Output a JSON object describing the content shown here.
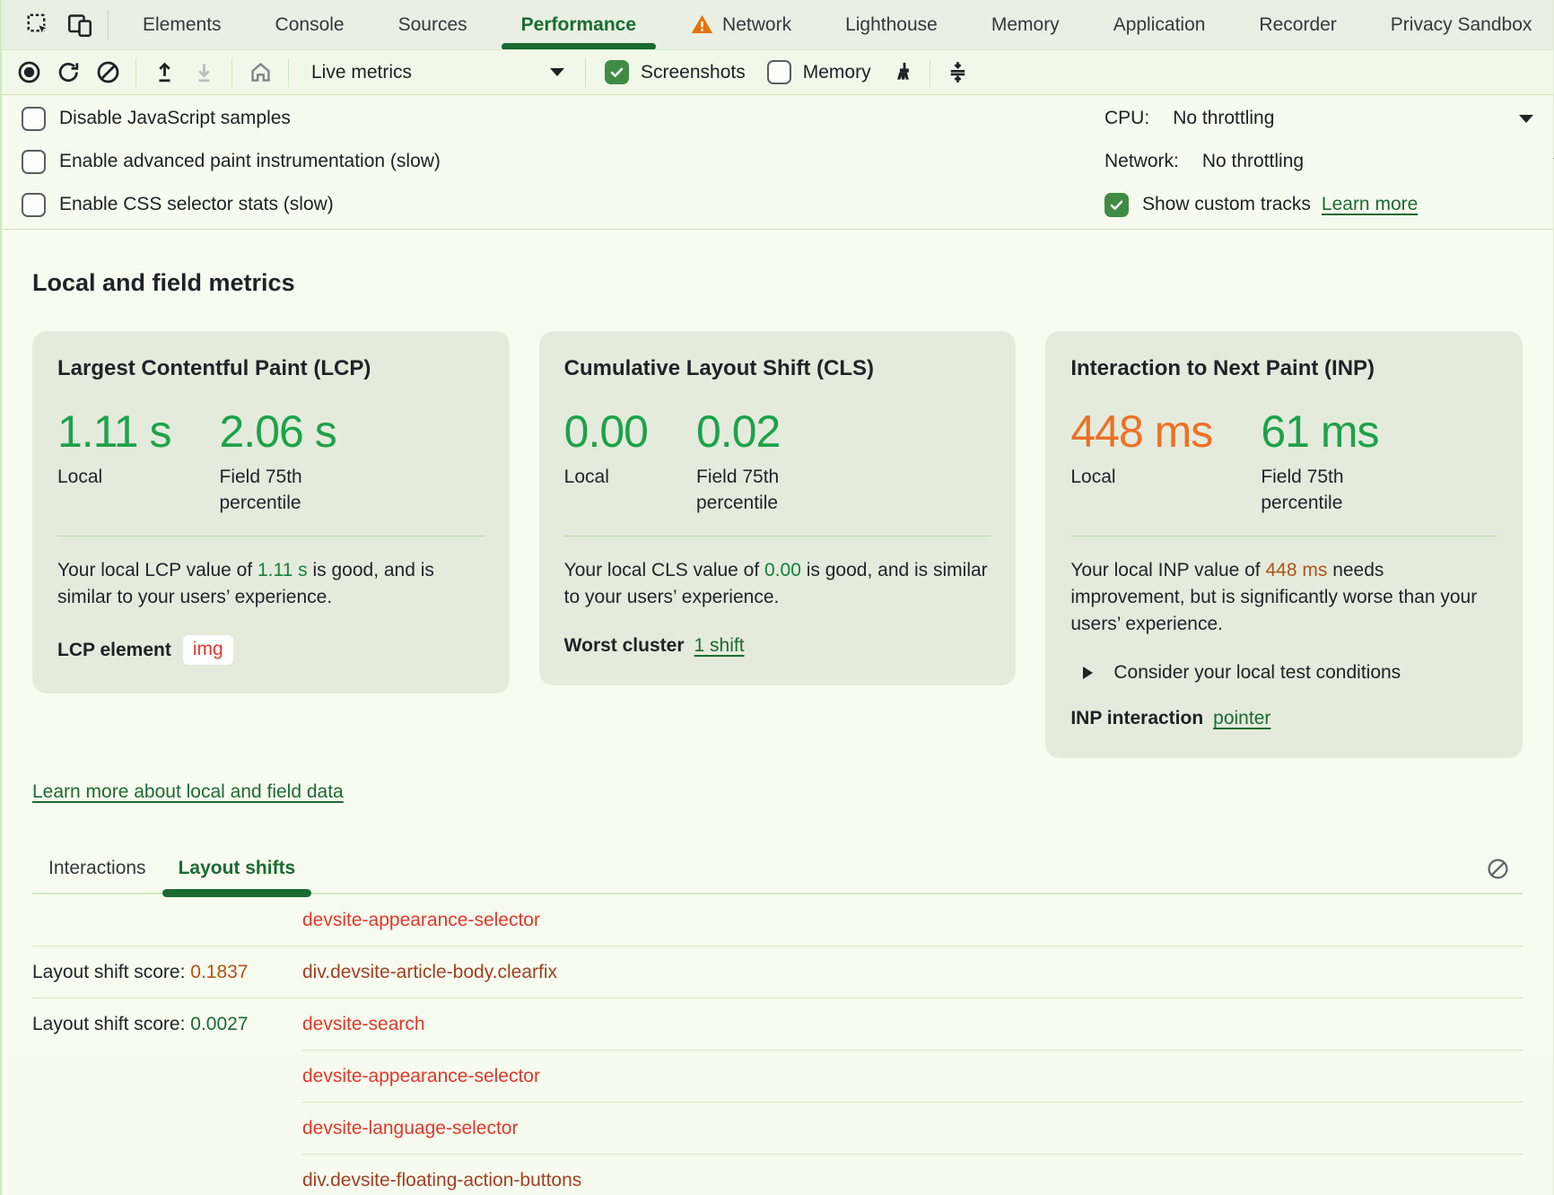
{
  "colors": {
    "accent_green": "#1a6b32",
    "metric_green": "#1ea24a",
    "metric_orange": "#ed7124",
    "inline_green": "#15803a",
    "inline_orange": "#b05314",
    "node_red": "#df392b",
    "node_brown": "#9e4123",
    "checkbox_green": "#3f8b43",
    "warning_orange": "#e8710a"
  },
  "tabbar": {
    "icons": [
      "inspect-icon",
      "device-toolbar-icon"
    ],
    "tabs": [
      {
        "label": "Elements",
        "active": false,
        "warning": false
      },
      {
        "label": "Console",
        "active": false,
        "warning": false
      },
      {
        "label": "Sources",
        "active": false,
        "warning": false
      },
      {
        "label": "Performance",
        "active": true,
        "warning": false
      },
      {
        "label": "Network",
        "active": false,
        "warning": true
      },
      {
        "label": "Lighthouse",
        "active": false,
        "warning": false
      },
      {
        "label": "Memory",
        "active": false,
        "warning": false
      },
      {
        "label": "Application",
        "active": false,
        "warning": false
      },
      {
        "label": "Recorder",
        "active": false,
        "warning": false
      },
      {
        "label": "Privacy Sandbox",
        "active": false,
        "warning": false
      }
    ]
  },
  "toolbar": {
    "icons": [
      "record-icon",
      "reload-icon",
      "clear-icon",
      "upload-icon",
      "download-icon",
      "home-icon",
      "broom-icon",
      "collapse-icon"
    ],
    "live_metrics_label": "Live metrics",
    "screenshots": {
      "label": "Screenshots",
      "checked": true
    },
    "memory": {
      "label": "Memory",
      "checked": false
    }
  },
  "settings": {
    "checkboxes": [
      {
        "label": "Disable JavaScript samples",
        "checked": false
      },
      {
        "label": "Enable advanced paint instrumentation (slow)",
        "checked": false
      },
      {
        "label": "Enable CSS selector stats (slow)",
        "checked": false
      }
    ],
    "cpu": {
      "label": "CPU:",
      "value": "No throttling"
    },
    "network": {
      "label": "Network:",
      "value": "No throttling"
    },
    "custom_tracks": {
      "label": "Show custom tracks",
      "checked": true,
      "link": "Learn more"
    }
  },
  "metrics": {
    "heading": "Local and field metrics",
    "learn_more": "Learn more about local and field data",
    "local_label": "Local",
    "field_label": "Field 75th percentile",
    "cards": [
      {
        "title": "Largest Contentful Paint (LCP)",
        "local": {
          "value": "1.11 s",
          "tone": "green"
        },
        "field": {
          "value": "2.06 s",
          "tone": "green"
        },
        "description": [
          {
            "text": "Your local LCP value of "
          },
          {
            "text": "1.11 s",
            "tone": "green"
          },
          {
            "text": " is good, and is similar to your users’ experience."
          }
        ],
        "footer": {
          "label": "LCP element",
          "chip": "img"
        }
      },
      {
        "title": "Cumulative Layout Shift (CLS)",
        "local": {
          "value": "0.00",
          "tone": "green"
        },
        "field": {
          "value": "0.02",
          "tone": "green"
        },
        "description": [
          {
            "text": "Your local CLS value of "
          },
          {
            "text": "0.00",
            "tone": "green"
          },
          {
            "text": " is good, and is similar to your users’ experience."
          }
        ],
        "footer": {
          "label": "Worst cluster",
          "link": "1 shift"
        }
      },
      {
        "title": "Interaction to Next Paint (INP)",
        "local": {
          "value": "448 ms",
          "tone": "orange"
        },
        "field": {
          "value": "61 ms",
          "tone": "green"
        },
        "description": [
          {
            "text": "Your local INP value of "
          },
          {
            "text": "448 ms",
            "tone": "orange"
          },
          {
            "text": " needs improvement, but is significantly worse than your users’ experience."
          }
        ],
        "expander": "Consider your local test conditions",
        "footer": {
          "label": "INP interaction",
          "link": "pointer"
        }
      }
    ]
  },
  "log": {
    "tabs": [
      {
        "label": "Interactions",
        "active": false
      },
      {
        "label": "Layout shifts",
        "active": true
      }
    ],
    "score_prefix": "Layout shift score: ",
    "rows": [
      {
        "score": "",
        "score_tone": "",
        "node": "devsite-appearance-selector",
        "node_tone": "red",
        "separator": "full"
      },
      {
        "score": "0.1837",
        "score_tone": "orange",
        "node": "div.devsite-article-body.clearfix",
        "node_tone": "brown",
        "separator": "full"
      },
      {
        "score": "0.0027",
        "score_tone": "green",
        "node": "devsite-search",
        "node_tone": "red",
        "separator": "indent"
      },
      {
        "score": "",
        "score_tone": "",
        "node": "devsite-appearance-selector",
        "node_tone": "red",
        "separator": "indent"
      },
      {
        "score": "",
        "score_tone": "",
        "node": "devsite-language-selector",
        "node_tone": "red",
        "separator": "indent"
      },
      {
        "score": "",
        "score_tone": "",
        "node": "div.devsite-floating-action-buttons",
        "node_tone": "brown",
        "separator": "none"
      }
    ]
  }
}
